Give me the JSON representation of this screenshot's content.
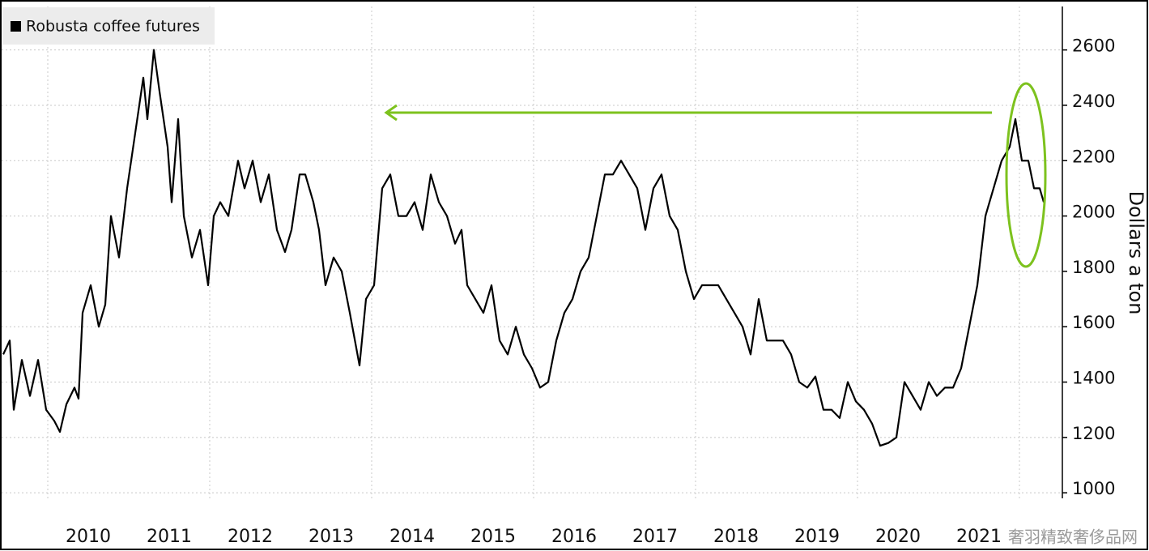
{
  "chart_data": {
    "type": "line",
    "y_axis_label": "Dollars a ton",
    "watermark": "奢羽精致奢侈品网",
    "series": [
      {
        "name": "Robusta coffee futures",
        "color": "#000000",
        "x": [
          2009.45,
          2009.53,
          2009.58,
          2009.68,
          2009.78,
          2009.88,
          2009.98,
          2010.08,
          2010.15,
          2010.23,
          2010.33,
          2010.38,
          2010.43,
          2010.53,
          2010.63,
          2010.71,
          2010.78,
          2010.88,
          2010.98,
          2011.08,
          2011.18,
          2011.23,
          2011.31,
          2011.38,
          2011.48,
          2011.53,
          2011.61,
          2011.68,
          2011.78,
          2011.88,
          2011.98,
          2012.05,
          2012.13,
          2012.23,
          2012.35,
          2012.43,
          2012.53,
          2012.63,
          2012.73,
          2012.83,
          2012.93,
          2013.01,
          2013.11,
          2013.18,
          2013.28,
          2013.35,
          2013.43,
          2013.53,
          2013.63,
          2013.73,
          2013.85,
          2013.93,
          2014.03,
          2014.13,
          2014.23,
          2014.33,
          2014.43,
          2014.53,
          2014.63,
          2014.73,
          2014.83,
          2014.93,
          2015.03,
          2015.11,
          2015.18,
          2015.28,
          2015.38,
          2015.48,
          2015.58,
          2015.68,
          2015.78,
          2015.88,
          2015.98,
          2016.08,
          2016.18,
          2016.28,
          2016.38,
          2016.48,
          2016.58,
          2016.68,
          2016.78,
          2016.88,
          2016.98,
          2017.08,
          2017.18,
          2017.28,
          2017.38,
          2017.48,
          2017.58,
          2017.68,
          2017.78,
          2017.88,
          2017.98,
          2018.08,
          2018.18,
          2018.28,
          2018.38,
          2018.48,
          2018.58,
          2018.68,
          2018.78,
          2018.88,
          2018.98,
          2019.08,
          2019.18,
          2019.28,
          2019.38,
          2019.48,
          2019.58,
          2019.68,
          2019.78,
          2019.88,
          2019.98,
          2020.08,
          2020.18,
          2020.28,
          2020.38,
          2020.48,
          2020.58,
          2020.68,
          2020.78,
          2020.88,
          2020.98,
          2021.08,
          2021.18,
          2021.28,
          2021.38,
          2021.48,
          2021.58,
          2021.68,
          2021.78,
          2021.88,
          2021.95,
          2022.03,
          2022.11,
          2022.18,
          2022.25,
          2022.3
        ],
        "values": [
          1500,
          1550,
          1300,
          1480,
          1350,
          1480,
          1300,
          1260,
          1220,
          1320,
          1380,
          1340,
          1650,
          1750,
          1600,
          1680,
          2000,
          1850,
          2100,
          2300,
          2500,
          2350,
          2600,
          2450,
          2250,
          2050,
          2350,
          2000,
          1850,
          1950,
          1750,
          2000,
          2050,
          2000,
          2200,
          2100,
          2200,
          2050,
          2150,
          1950,
          1870,
          1950,
          2150,
          2150,
          2050,
          1950,
          1750,
          1850,
          1800,
          1650,
          1460,
          1700,
          1750,
          2100,
          2150,
          2000,
          2000,
          2050,
          1950,
          2150,
          2050,
          2000,
          1900,
          1950,
          1750,
          1700,
          1650,
          1750,
          1550,
          1500,
          1600,
          1500,
          1450,
          1380,
          1400,
          1550,
          1650,
          1700,
          1800,
          1850,
          2000,
          2150,
          2150,
          2200,
          2150,
          2100,
          1950,
          2100,
          2150,
          2000,
          1950,
          1800,
          1700,
          1750,
          1750,
          1750,
          1700,
          1650,
          1600,
          1500,
          1700,
          1550,
          1550,
          1550,
          1500,
          1400,
          1380,
          1420,
          1300,
          1300,
          1270,
          1400,
          1330,
          1300,
          1250,
          1170,
          1180,
          1200,
          1400,
          1350,
          1300,
          1400,
          1350,
          1380,
          1380,
          1450,
          1600,
          1750,
          2000,
          2100,
          2200,
          2250,
          2350,
          2200,
          2200,
          2100,
          2100,
          2050
        ]
      }
    ],
    "xlim": [
      2009.43,
      2022.53
    ],
    "xticks": [
      {
        "value": 2010.5,
        "label": "2010"
      },
      {
        "value": 2011.5,
        "label": "2011"
      },
      {
        "value": 2012.5,
        "label": "2012"
      },
      {
        "value": 2013.5,
        "label": "2013"
      },
      {
        "value": 2014.5,
        "label": "2014"
      },
      {
        "value": 2015.5,
        "label": "2015"
      },
      {
        "value": 2016.5,
        "label": "2016"
      },
      {
        "value": 2017.5,
        "label": "2017"
      },
      {
        "value": 2018.5,
        "label": "2018"
      },
      {
        "value": 2019.5,
        "label": "2019"
      },
      {
        "value": 2020.5,
        "label": "2020"
      },
      {
        "value": 2021.5,
        "label": "2021"
      }
    ],
    "x_gridlines": [
      2010,
      2012,
      2014,
      2016,
      2018,
      2020,
      2022
    ],
    "ylim": [
      980,
      2757
    ],
    "yticks": [
      1000,
      1200,
      1400,
      1600,
      1800,
      2000,
      2200,
      2400,
      2600
    ],
    "y_axis_side": "right",
    "grid": true,
    "legend": "top-left"
  }
}
